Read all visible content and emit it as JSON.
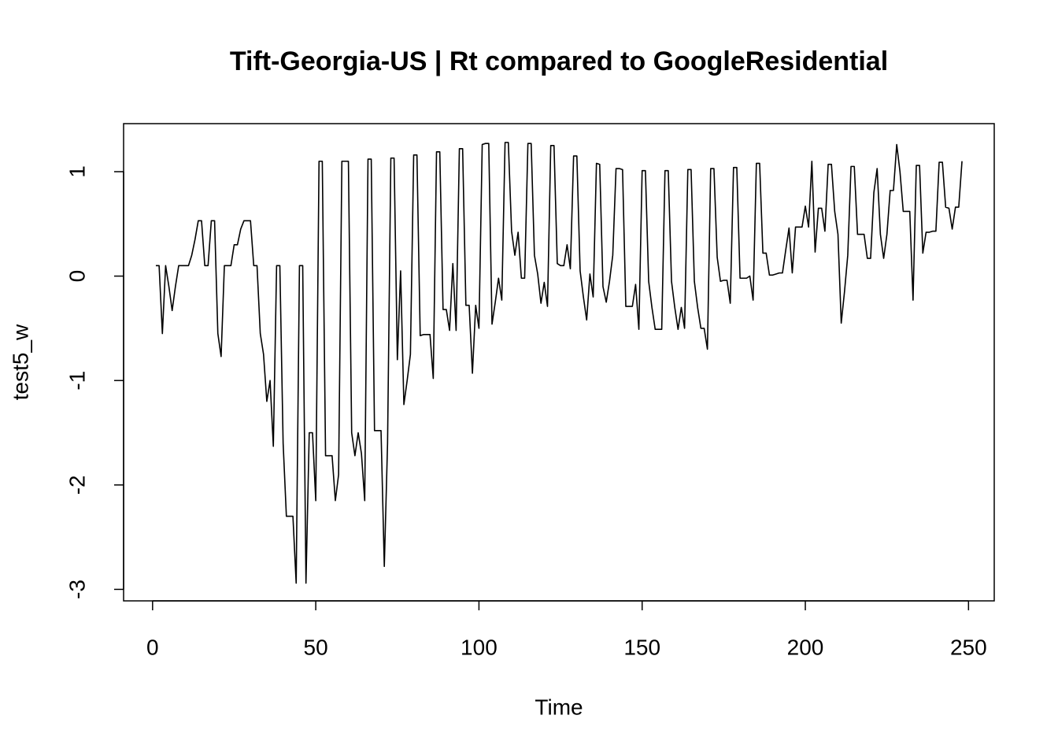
{
  "chart_data": {
    "type": "line",
    "title": "Tift-Georgia-US | Rt compared to GoogleResidential",
    "x_label": "Time",
    "y_label": "test5_w",
    "x": [
      1,
      2,
      3,
      4,
      5,
      6,
      7,
      8,
      9,
      10,
      11,
      12,
      13,
      14,
      15,
      16,
      17,
      18,
      19,
      20,
      21,
      22,
      23,
      24,
      25,
      26,
      27,
      28,
      29,
      30,
      31,
      32,
      33,
      34,
      35,
      36,
      37,
      38,
      39,
      40,
      41,
      42,
      43,
      44,
      45,
      46,
      47,
      48,
      49,
      50,
      51,
      52,
      53,
      54,
      55,
      56,
      57,
      58,
      59,
      60,
      61,
      62,
      63,
      64,
      65,
      66,
      67,
      68,
      69,
      70,
      71,
      72,
      73,
      74,
      75,
      76,
      77,
      78,
      79,
      80,
      81,
      82,
      83,
      84,
      85,
      86,
      87,
      88,
      89,
      90,
      91,
      92,
      93,
      94,
      95,
      96,
      97,
      98,
      99,
      100,
      101,
      102,
      103,
      104,
      105,
      106,
      107,
      108,
      109,
      110,
      111,
      112,
      113,
      114,
      115,
      116,
      117,
      118,
      119,
      120,
      121,
      122,
      123,
      124,
      125,
      126,
      127,
      128,
      129,
      130,
      131,
      132,
      133,
      134,
      135,
      136,
      137,
      138,
      139,
      140,
      141,
      142,
      143,
      144,
      145,
      146,
      147,
      148,
      149,
      150,
      151,
      152,
      153,
      154,
      155,
      156,
      157,
      158,
      159,
      160,
      161,
      162,
      163,
      164,
      165,
      166,
      167,
      168,
      169,
      170,
      171,
      172,
      173,
      174,
      175,
      176,
      177,
      178,
      179,
      180,
      181,
      182,
      183,
      184,
      185,
      186,
      187,
      188,
      189,
      190,
      191,
      192,
      193,
      194,
      195,
      196,
      197,
      198,
      199,
      200,
      201,
      202,
      203,
      204,
      205,
      206,
      207,
      208,
      209,
      210,
      211,
      212,
      213,
      214,
      215,
      216,
      217,
      218,
      219,
      220,
      221,
      222,
      223,
      224,
      225,
      226,
      227,
      228,
      229,
      230,
      231,
      232,
      233,
      234,
      235,
      236,
      237,
      238,
      239,
      240,
      241,
      242,
      243,
      244,
      245,
      246,
      247,
      248
    ],
    "series": [
      {
        "name": "test5_w",
        "color": "#000000",
        "values": [
          0.1,
          0.1,
          -0.55,
          0.1,
          -0.1,
          -0.33,
          -0.1,
          0.1,
          0.1,
          0.1,
          0.1,
          0.2,
          0.35,
          0.53,
          0.53,
          0.1,
          0.1,
          0.53,
          0.53,
          -0.55,
          -0.77,
          0.1,
          0.1,
          0.1,
          0.3,
          0.3,
          0.45,
          0.53,
          0.53,
          0.53,
          0.1,
          0.1,
          -0.55,
          -0.75,
          -1.2,
          -1.0,
          -1.63,
          0.1,
          0.1,
          -1.6,
          -2.3,
          -2.3,
          -2.3,
          -2.94,
          0.1,
          0.1,
          -2.94,
          -1.5,
          -1.5,
          -2.15,
          1.1,
          1.1,
          -1.72,
          -1.72,
          -1.72,
          -2.15,
          -1.9,
          1.1,
          1.1,
          1.1,
          -1.5,
          -1.72,
          -1.5,
          -1.7,
          -2.15,
          1.12,
          1.12,
          -1.48,
          -1.48,
          -1.48,
          -2.78,
          -1.6,
          1.13,
          1.13,
          -0.8,
          0.05,
          -1.23,
          -1.0,
          -0.75,
          1.16,
          1.16,
          -0.57,
          -0.56,
          -0.56,
          -0.56,
          -0.98,
          1.19,
          1.19,
          -0.32,
          -0.32,
          -0.52,
          0.12,
          -0.52,
          1.22,
          1.22,
          -0.28,
          -0.28,
          -0.93,
          -0.28,
          -0.5,
          1.26,
          1.27,
          1.27,
          -0.46,
          -0.25,
          -0.02,
          -0.23,
          1.28,
          1.28,
          0.43,
          0.2,
          0.42,
          -0.02,
          -0.02,
          1.27,
          1.27,
          0.2,
          0.02,
          -0.26,
          -0.06,
          -0.29,
          1.25,
          1.25,
          0.12,
          0.1,
          0.1,
          0.3,
          0.07,
          1.15,
          1.15,
          0.05,
          -0.2,
          -0.42,
          0.02,
          -0.2,
          1.08,
          1.07,
          -0.1,
          -0.25,
          -0.05,
          0.2,
          1.03,
          1.03,
          1.02,
          -0.29,
          -0.29,
          -0.29,
          -0.08,
          -0.51,
          1.01,
          1.01,
          -0.05,
          -0.3,
          -0.51,
          -0.51,
          -0.51,
          1.01,
          1.01,
          -0.05,
          -0.3,
          -0.51,
          -0.3,
          -0.5,
          1.02,
          1.02,
          -0.05,
          -0.3,
          -0.5,
          -0.5,
          -0.7,
          1.03,
          1.03,
          0.18,
          -0.05,
          -0.04,
          -0.04,
          -0.26,
          1.04,
          1.04,
          -0.02,
          -0.02,
          -0.02,
          0,
          -0.23,
          1.08,
          1.08,
          0.22,
          0.22,
          0.01,
          0.01,
          0.02,
          0.03,
          0.03,
          0.25,
          0.46,
          0.03,
          0.47,
          0.47,
          0.47,
          0.67,
          0.47,
          1.1,
          0.23,
          0.65,
          0.65,
          0.43,
          1.07,
          1.07,
          0.62,
          0.4,
          -0.45,
          -0.15,
          0.2,
          1.05,
          1.05,
          0.4,
          0.4,
          0.4,
          0.17,
          0.17,
          0.8,
          1.03,
          0.4,
          0.17,
          0.4,
          0.82,
          0.82,
          1.26,
          1.0,
          0.62,
          0.62,
          0.62,
          -0.23,
          1.06,
          1.06,
          0.22,
          0.42,
          0.42,
          0.43,
          0.43,
          1.09,
          1.09,
          0.66,
          0.65,
          0.45,
          0.66,
          0.66,
          1.1
        ]
      }
    ],
    "xlim": [
      -8.88,
      257.88
    ],
    "xticks": [
      0,
      50,
      100,
      150,
      200,
      250
    ],
    "ylim": [
      -3.11,
      1.46
    ],
    "yticks": [
      -3,
      -2,
      -1,
      0,
      1
    ]
  }
}
